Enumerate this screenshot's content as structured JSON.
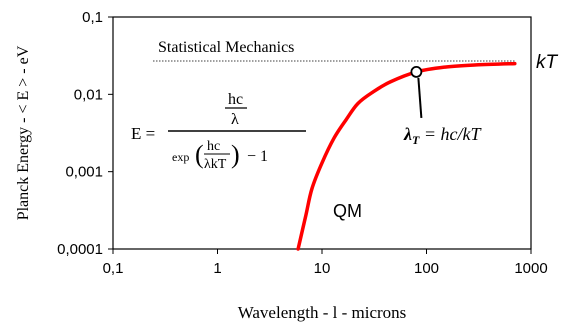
{
  "chart_data": {
    "type": "line",
    "xscale": "log",
    "yscale": "log",
    "xlim": [
      0.1,
      1000
    ],
    "ylim": [
      0.0001,
      0.1
    ],
    "x_ticks": [
      "0,1",
      "1",
      "10",
      "100",
      "1000"
    ],
    "y_ticks": [
      "0,1",
      "0,01",
      "0,001",
      "0,0001"
    ],
    "xlabel": "Wavelength - l -  microns",
    "ylabel": "Planck Energy - < E > - eV",
    "grid": false,
    "series": [
      {
        "name": "QM",
        "color": "#ff0000",
        "x": [
          5.9,
          7,
          8,
          10,
          13,
          17,
          22,
          30,
          45,
          80,
          150,
          300,
          700
        ],
        "y": [
          0.0001,
          0.00027,
          0.0006,
          0.0013,
          0.0027,
          0.0047,
          0.0076,
          0.0105,
          0.0145,
          0.0195,
          0.0225,
          0.024,
          0.025
        ]
      }
    ],
    "reference_line": {
      "label": "Statistical Mechanics",
      "y": 0.027,
      "x_start": 0.1,
      "x_end": 700,
      "style": "dotted"
    },
    "end_label": "kT",
    "marker": {
      "x": 80,
      "y": 0.0195,
      "label_lambda": "λ",
      "label_sub": "T",
      "label_rest": " = hc/kT"
    },
    "curve_label": "QM",
    "formula": {
      "lhs": "E =",
      "num_top": "hc",
      "num_bottom": "λ",
      "den_exp": "exp",
      "den_frac_top": "hc",
      "den_frac_bottom": "λkT",
      "den_minus_one": "− 1"
    }
  }
}
